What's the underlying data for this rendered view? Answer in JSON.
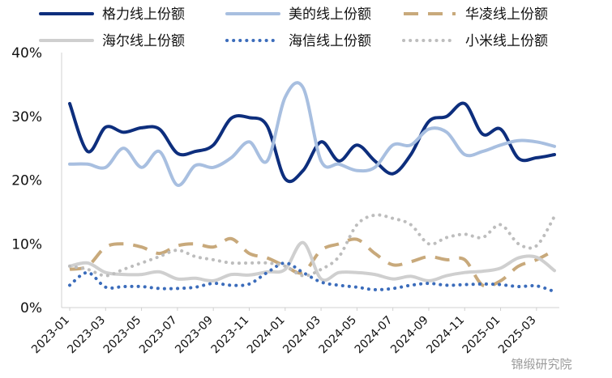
{
  "watermark": "锦缎研究院",
  "chart_data": {
    "type": "line",
    "ylim": [
      0,
      40
    ],
    "yticks": [
      "0%",
      "10%",
      "20%",
      "30%",
      "40%"
    ],
    "legend_position": "top",
    "x": [
      "2023-01",
      "2023-02",
      "2023-03",
      "2023-04",
      "2023-05",
      "2023-06",
      "2023-07",
      "2023-08",
      "2023-09",
      "2023-10",
      "2023-11",
      "2023-12",
      "2024-01",
      "2024-02",
      "2024-03",
      "2024-04",
      "2024-05",
      "2024-06",
      "2024-07",
      "2024-08",
      "2024-09",
      "2024-10",
      "2024-11",
      "2024-12",
      "2025-01",
      "2025-02",
      "2025-03",
      "2025-04"
    ],
    "xtick_labels": [
      "2023-01",
      "2023-03",
      "2023-05",
      "2023-07",
      "2023-09",
      "2023-11",
      "2024-01",
      "2024-03",
      "2024-05",
      "2024-07",
      "2024-09",
      "2024-11",
      "2025-01",
      "2025-03"
    ],
    "series": [
      {
        "name": "格力线上份额",
        "color": "#0d2e7d",
        "style": "solid",
        "width": 4,
        "values": [
          32,
          24.5,
          28.3,
          27.5,
          28.2,
          28,
          24.2,
          24.5,
          25.5,
          29.7,
          29.8,
          28.5,
          20.2,
          21.5,
          26,
          23,
          25.5,
          23,
          21,
          24,
          29.2,
          30,
          32,
          27.2,
          28,
          23.4,
          23.5,
          24
        ]
      },
      {
        "name": "美的线上份额",
        "color": "#a8bfe0",
        "style": "solid",
        "width": 4,
        "values": [
          22.5,
          22.5,
          22,
          25,
          22,
          24.5,
          19.2,
          22.3,
          22,
          23.5,
          26,
          23,
          33,
          34.5,
          23,
          22.5,
          21.5,
          22,
          25.5,
          25.5,
          28,
          27.5,
          24,
          24.5,
          25.5,
          26.2,
          26,
          25.3
        ]
      },
      {
        "name": "华凌线上份额",
        "color": "#c8a97b",
        "style": "dash",
        "width": 4,
        "values": [
          6,
          6.5,
          9.5,
          10,
          9.5,
          8.5,
          9.7,
          10,
          9.5,
          10.8,
          8.5,
          7.8,
          6.5,
          5.5,
          9,
          10,
          10.7,
          8.5,
          6.7,
          7.2,
          8,
          7.5,
          7.5,
          3.5,
          4.2,
          6.5,
          7.5,
          9
        ]
      },
      {
        "name": "海尔线上份额",
        "color": "#cfcfcf",
        "style": "solid",
        "width": 4,
        "values": [
          6.5,
          7,
          5.5,
          5.2,
          5.2,
          5.6,
          4.5,
          4.6,
          4.2,
          5.2,
          5.1,
          5.6,
          6,
          10.2,
          4.5,
          5.5,
          5.5,
          5.2,
          4.5,
          4.9,
          4.2,
          5,
          5.5,
          5.7,
          6.2,
          7.8,
          7.9,
          5.8
        ]
      },
      {
        "name": "海信线上份额",
        "color": "#3b6cbb",
        "style": "dot",
        "width": 4,
        "values": [
          3.5,
          5.5,
          3.2,
          3.3,
          3.3,
          3,
          3,
          3.2,
          3.8,
          3.5,
          3.7,
          5.5,
          7,
          5.5,
          4,
          3.5,
          3.2,
          2.8,
          3,
          3.5,
          3.8,
          3.5,
          3.6,
          3.7,
          3.6,
          3.3,
          3.4,
          2.5
        ]
      },
      {
        "name": "小米线上份额",
        "color": "#bdbdbd",
        "style": "dot",
        "width": 4,
        "values": [
          6.5,
          6,
          5,
          6,
          7,
          8,
          9,
          8,
          7.5,
          7,
          7,
          7,
          6.5,
          5,
          6,
          8,
          13,
          14.5,
          14,
          13,
          10,
          11,
          11.5,
          11,
          13,
          10,
          9.7,
          14.3
        ]
      }
    ]
  }
}
